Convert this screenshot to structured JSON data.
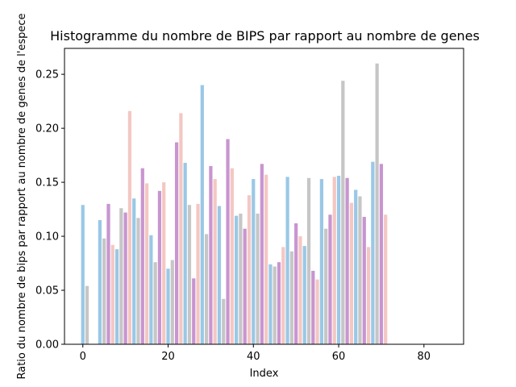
{
  "chart_data": {
    "type": "bar",
    "title": "Histogramme du nombre de BIPS par rapport au nombre de genes",
    "xlabel": "Index",
    "ylabel": "Ratio du nombre de bips par rapport au nombre de genes de l'espece",
    "xlim": [
      -4.3,
      89.3
    ],
    "ylim": [
      0,
      0.274
    ],
    "xticks": [
      0,
      20,
      40,
      60,
      80
    ],
    "yticks": [
      0.0,
      0.05,
      0.1,
      0.15,
      0.2,
      0.25
    ],
    "xtick_labels": [
      "0",
      "20",
      "40",
      "60",
      "80"
    ],
    "ytick_labels": [
      "0.00",
      "0.05",
      "0.10",
      "0.15",
      "0.20",
      "0.25"
    ],
    "grid": false,
    "legend": false,
    "color_cycle": [
      "#9ac8e6",
      "#c6c6c6",
      "#c895d0",
      "#f4c7c3"
    ],
    "x": [
      0,
      1,
      2,
      3,
      4,
      5,
      6,
      7,
      8,
      9,
      10,
      11,
      12,
      13,
      14,
      15,
      16,
      17,
      18,
      19,
      20,
      21,
      22,
      23,
      24,
      25,
      26,
      27,
      28,
      29,
      30,
      31,
      32,
      33,
      34,
      35,
      36,
      37,
      38,
      39,
      40,
      41,
      42,
      43,
      44,
      45,
      46,
      47,
      48,
      49,
      50,
      51,
      52,
      53,
      54,
      55,
      56,
      57,
      58,
      59,
      60,
      61,
      62,
      63,
      64,
      65,
      66,
      67,
      68,
      69,
      70,
      71,
      72,
      73,
      74,
      75,
      76,
      77,
      78,
      79,
      80,
      81,
      82,
      83,
      84,
      85,
      86
    ],
    "values": [
      0.129,
      0.054,
      0,
      0,
      0.115,
      0.098,
      0.13,
      0.092,
      0.088,
      0.126,
      0.122,
      0.216,
      0.135,
      0.117,
      0.163,
      0.149,
      0.101,
      0.076,
      0.142,
      0.15,
      0.07,
      0.078,
      0.187,
      0.214,
      0.168,
      0.129,
      0.061,
      0.13,
      0.24,
      0.102,
      0.165,
      0.153,
      0.128,
      0.042,
      0.19,
      0.163,
      0.119,
      0.121,
      0.107,
      0.138,
      0.153,
      0.121,
      0.167,
      0.157,
      0.074,
      0.072,
      0.076,
      0.09,
      0.155,
      0.086,
      0.112,
      0.1,
      0.091,
      0.154,
      0.068,
      0.06,
      0.153,
      0.107,
      0.12,
      0.155,
      0.156,
      0.244,
      0.154,
      0.131,
      0.143,
      0.137,
      0.118,
      0.09,
      0.169,
      0.26,
      0.167,
      0.12,
      0,
      0,
      0,
      0,
      0,
      0,
      0,
      0,
      0,
      0,
      0,
      0,
      0,
      0,
      0
    ]
  }
}
